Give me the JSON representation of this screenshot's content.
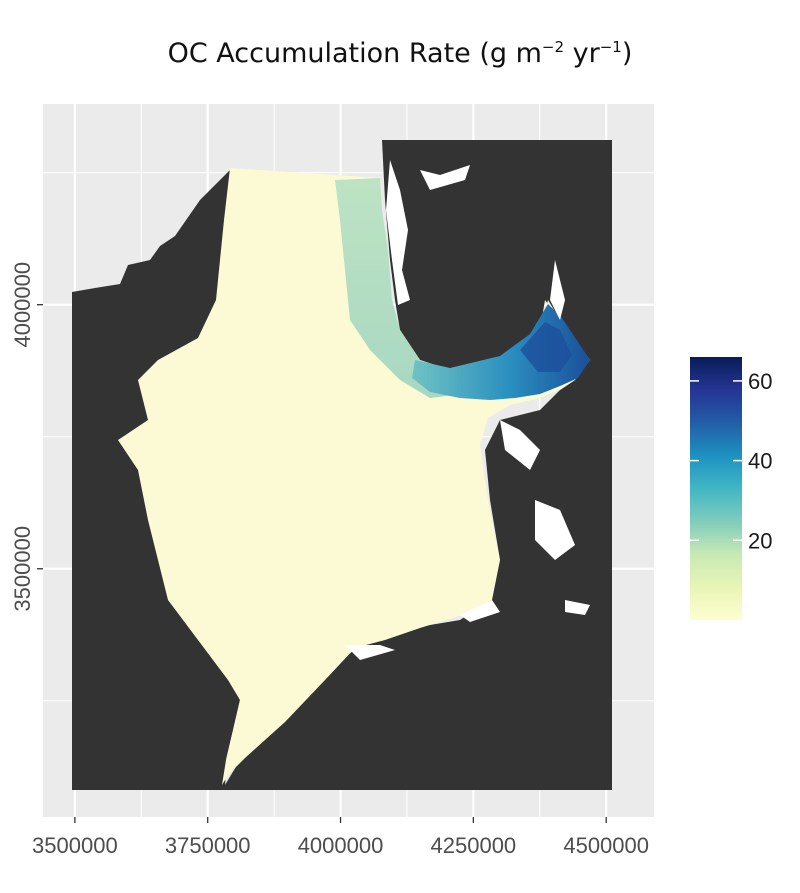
{
  "title": {
    "main": "OC Accumulation Rate (g m",
    "exp1": "−2",
    "mid": " yr",
    "exp2": "−1",
    "end": ")"
  },
  "x_axis": {
    "ticks": [
      {
        "value": 3500000,
        "label": "3500000"
      },
      {
        "value": 3750000,
        "label": "3750000"
      },
      {
        "value": 4000000,
        "label": "4000000"
      },
      {
        "value": 4250000,
        "label": "4250000"
      },
      {
        "value": 4500000,
        "label": "4500000"
      }
    ],
    "range": [
      3440000,
      4590000
    ]
  },
  "y_axis": {
    "ticks": [
      {
        "value": 3500000,
        "label": "3500000"
      },
      {
        "value": 4000000,
        "label": "4000000"
      }
    ],
    "range": [
      3030000,
      4380000
    ]
  },
  "legend": {
    "min": 0,
    "max": 66,
    "ticks": [
      {
        "value": 20,
        "label": "20"
      },
      {
        "value": 40,
        "label": "40"
      },
      {
        "value": 60,
        "label": "60"
      }
    ],
    "colors": [
      "#fdfed0",
      "#e9f5b6",
      "#c7e9b4",
      "#7fcdbb",
      "#41b6c4",
      "#1d91c0",
      "#225ea8",
      "#253494",
      "#081d58"
    ]
  },
  "colors": {
    "panel": "#ebebeb",
    "grid": "#ffffff",
    "land": "#333333",
    "sea_low": "#fbfad4",
    "sea_mid": "#cde8c2"
  }
}
